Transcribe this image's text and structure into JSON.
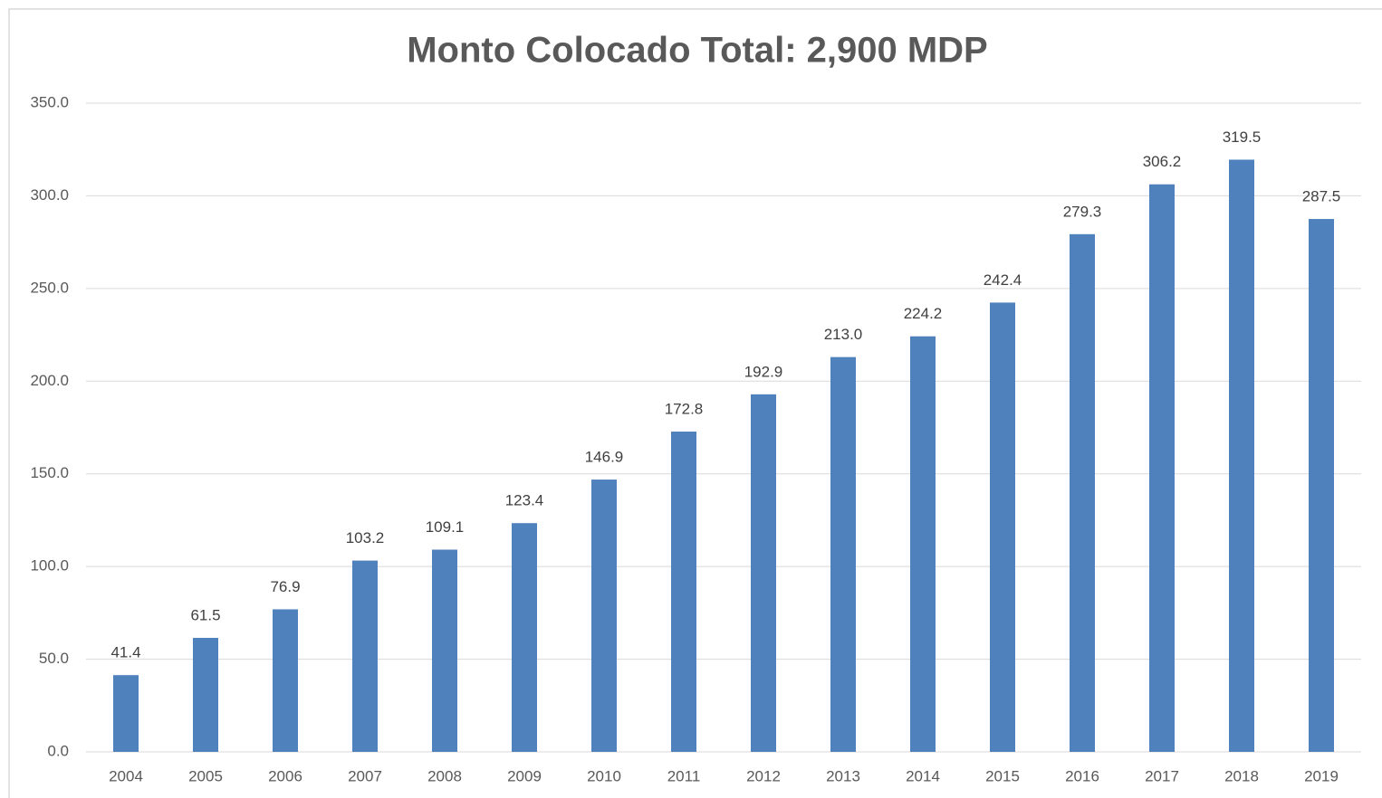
{
  "chart_data": {
    "type": "bar",
    "title": "Monto Colocado Total: 2,900 MDP",
    "categories": [
      "2004",
      "2005",
      "2006",
      "2007",
      "2008",
      "2009",
      "2010",
      "2011",
      "2012",
      "2013",
      "2014",
      "2015",
      "2016",
      "2017",
      "2018",
      "2019"
    ],
    "values": [
      41.4,
      61.5,
      76.9,
      103.2,
      109.1,
      123.4,
      146.9,
      172.8,
      192.9,
      213.0,
      224.2,
      242.4,
      279.3,
      306.2,
      319.5,
      287.5
    ],
    "value_labels": [
      "41.4",
      "61.5",
      "76.9",
      "103.2",
      "109.1",
      "123.4",
      "146.9",
      "172.8",
      "192.9",
      "213.0",
      "224.2",
      "242.4",
      "279.3",
      "306.2",
      "319.5",
      "287.5"
    ],
    "color": "#4f81bd",
    "ylim": [
      0,
      350
    ],
    "yticks": [
      {
        "value": 0,
        "label": "0.0"
      },
      {
        "value": 50,
        "label": "50.0"
      },
      {
        "value": 100,
        "label": "100.0"
      },
      {
        "value": 150,
        "label": "150.0"
      },
      {
        "value": 200,
        "label": "200.0"
      },
      {
        "value": 250,
        "label": "250.0"
      },
      {
        "value": 300,
        "label": "300.0"
      },
      {
        "value": 350,
        "label": "350.0"
      }
    ],
    "grid": true
  }
}
